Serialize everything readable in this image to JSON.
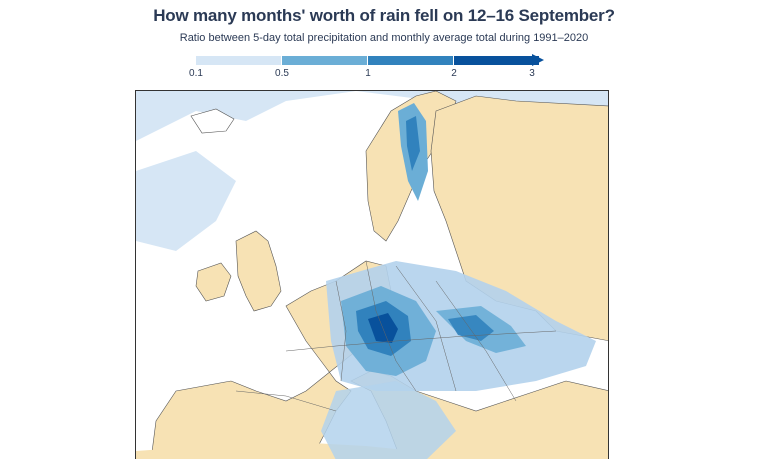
{
  "title": "How many months' worth of rain fell on 12–16 September?",
  "subtitle": "Ratio between 5-day total precipitation and monthly average total during 1991–2020",
  "legend": {
    "ticks": [
      "0.1",
      "0.5",
      "1",
      "2",
      "3"
    ],
    "tick_values": [
      0.1,
      0.5,
      1,
      2,
      3
    ],
    "colors": [
      "#d6e6f5",
      "#b3d2ec",
      "#6baed6",
      "#3182bd",
      "#08519c"
    ]
  },
  "map": {
    "land_color": "#f7e2b4",
    "sea_color": "#ffffff",
    "low_rain_color": "#d6e6f5",
    "border_color": "#555555"
  }
}
